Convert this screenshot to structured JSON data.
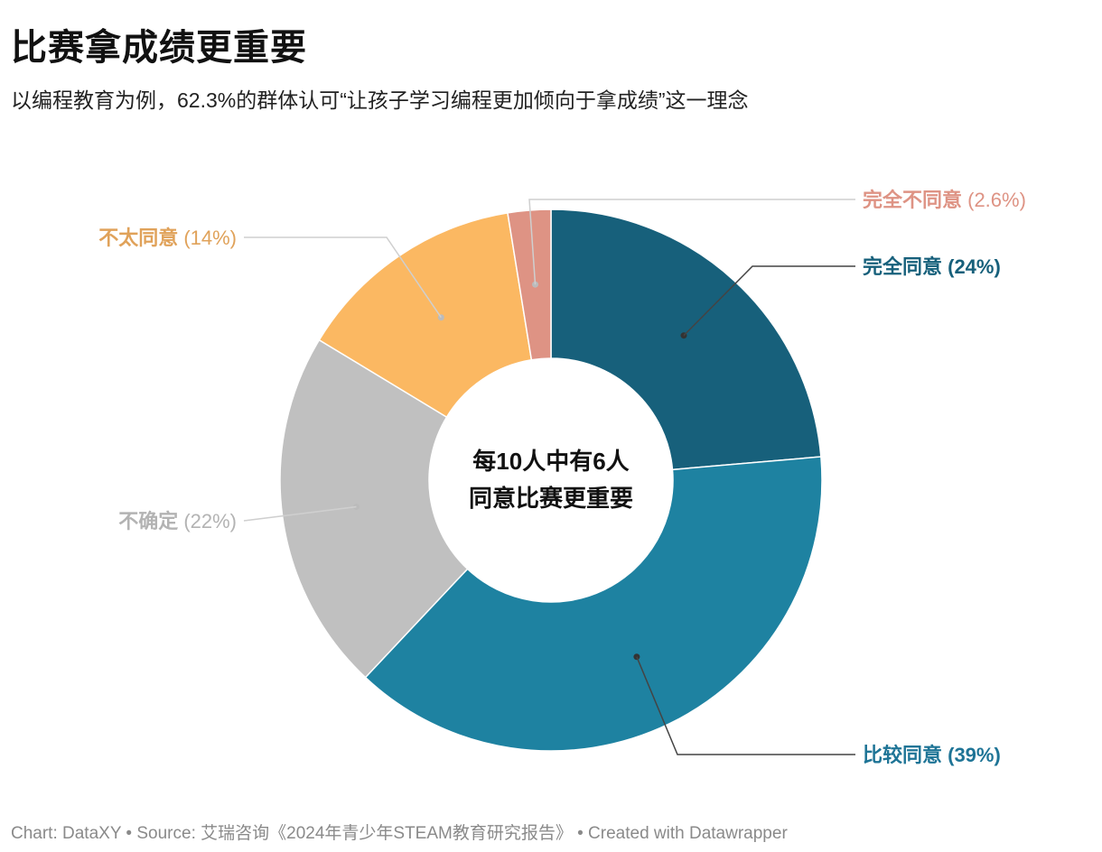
{
  "title": "比赛拿成绩更重要",
  "subtitle": "以编程教育为例，62.3%的群体认可“让孩子学习编程更加倾向于拿成绩”这一理念",
  "center_label": [
    "每10人中有6人",
    "同意比赛更重要"
  ],
  "footer": "Chart: DataXY • Source: 艾瑞咨询《2024年青少年STEAM教育研究报告》 • Created with Datawrapper",
  "chart_data": {
    "type": "pie",
    "variant": "donut",
    "slices": [
      {
        "label": "完全同意",
        "value": 24,
        "value_label": "(24%)",
        "color": "#17607b",
        "label_color": "#17607b",
        "bold_value": true,
        "side": "right"
      },
      {
        "label": "比较同意",
        "value": 39,
        "value_label": "(39%)",
        "color": "#1e82a1",
        "label_color": "#1e7496",
        "bold_value": true,
        "side": "right"
      },
      {
        "label": "不确定",
        "value": 22,
        "value_label": "(22%)",
        "color": "#c0c0c0",
        "label_color": "#b3b3b3",
        "bold_value": false,
        "side": "left"
      },
      {
        "label": "不太同意",
        "value": 14,
        "value_label": "(14%)",
        "color": "#fbb862",
        "label_color": "#e0a25a",
        "bold_value": false,
        "side": "left"
      },
      {
        "label": "完全不同意",
        "value": 2.6,
        "value_label": "(2.6%)",
        "color": "#de9384",
        "label_color": "#de9384",
        "bold_value": false,
        "side": "right"
      }
    ]
  }
}
